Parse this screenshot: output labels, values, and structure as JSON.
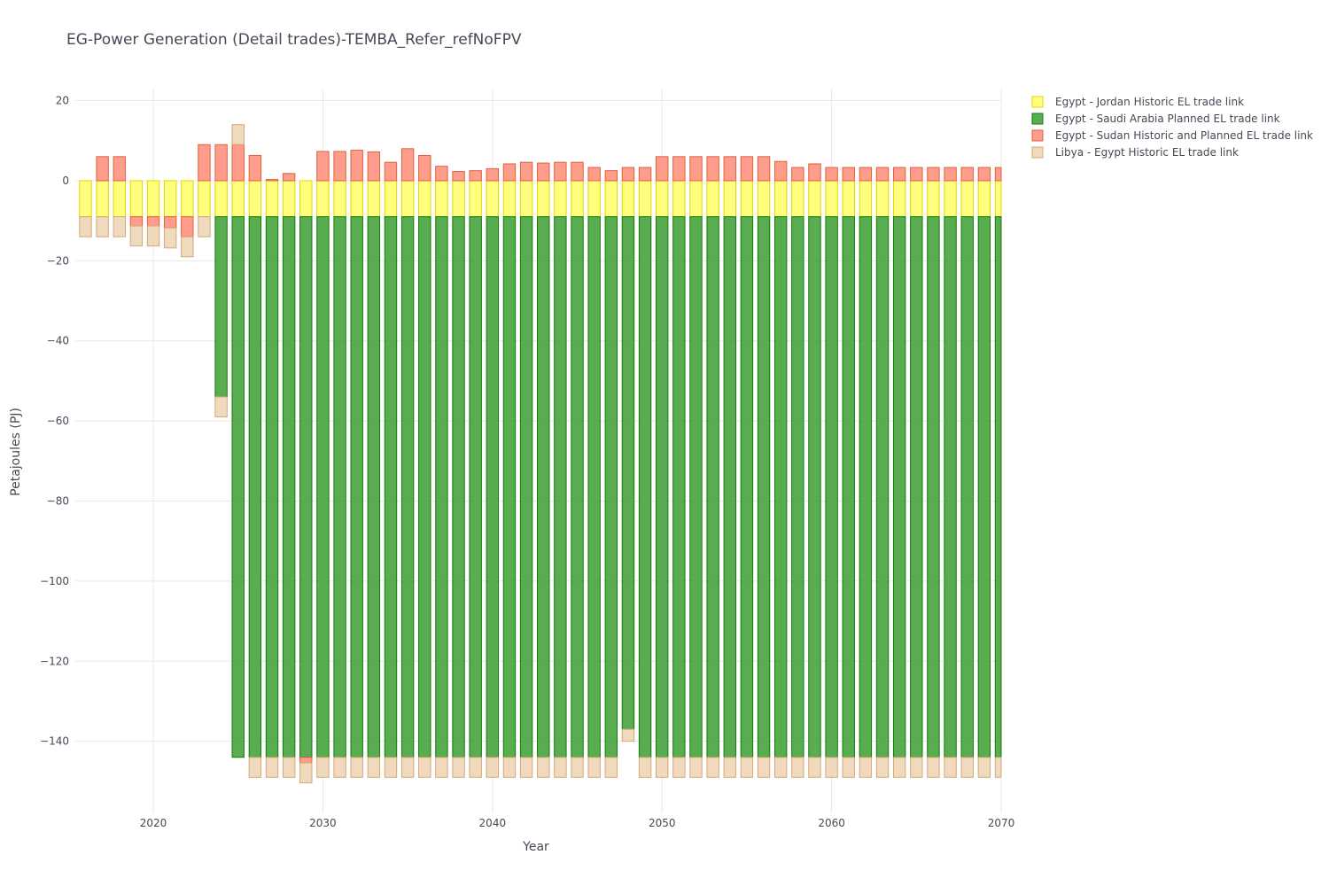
{
  "chart_data": {
    "type": "bar",
    "barmode": "relative",
    "title": "EG-Power Generation (Detail trades)-TEMBA_Refer_refNoFPV",
    "xlabel": "Year",
    "ylabel": "Petajoules (PJ)",
    "xlim": [
      2015.4,
      2070
    ],
    "ylim": [
      -158,
      23
    ],
    "xticks": [
      2020,
      2030,
      2040,
      2050,
      2060,
      2070
    ],
    "yticks": [
      20,
      0,
      -20,
      -40,
      -60,
      -80,
      -100,
      -120,
      -140
    ],
    "ytick_labels": [
      "20",
      "0",
      "−20",
      "−40",
      "−60",
      "−80",
      "−100",
      "−120",
      "−140"
    ],
    "legend_position": "top-right",
    "x": [
      2016,
      2017,
      2018,
      2019,
      2020,
      2021,
      2022,
      2023,
      2024,
      2025,
      2026,
      2027,
      2028,
      2029,
      2030,
      2031,
      2032,
      2033,
      2034,
      2035,
      2036,
      2037,
      2038,
      2039,
      2040,
      2041,
      2042,
      2043,
      2044,
      2045,
      2046,
      2047,
      2048,
      2049,
      2050,
      2051,
      2052,
      2053,
      2054,
      2055,
      2056,
      2057,
      2058,
      2059,
      2060,
      2061,
      2062,
      2063,
      2064,
      2065,
      2066,
      2067,
      2068,
      2069,
      2070
    ],
    "series": [
      {
        "name": "Egypt - Jordan Historic EL trade link",
        "fill": "#ffff66",
        "stroke": "#e3d700",
        "values": [
          -9,
          -9,
          -9,
          -9,
          -9,
          -9,
          -9,
          -9,
          -9,
          -9,
          -9,
          -9,
          -9,
          -9,
          -9,
          -9,
          -9,
          -9,
          -9,
          -9,
          -9,
          -9,
          -9,
          -9,
          -9,
          -9,
          -9,
          -9,
          -9,
          -9,
          -9,
          -9,
          -9,
          -9,
          -9,
          -9,
          -9,
          -9,
          -9,
          -9,
          -9,
          -9,
          -9,
          -9,
          -9,
          -9,
          -9,
          -9,
          -9,
          -9,
          -9,
          -9,
          -9,
          -9,
          -9
        ]
      },
      {
        "name": "Egypt - Saudi Arabia Planned EL trade link",
        "fill": "#3d9e33",
        "stroke": "#137a0d",
        "values": [
          0,
          0,
          0,
          0,
          0,
          0,
          0,
          0,
          -45,
          -135,
          -135,
          -135,
          -135,
          -135,
          -135,
          -135,
          -135,
          -135,
          -135,
          -135,
          -135,
          -135,
          -135,
          -135,
          -135,
          -135,
          -135,
          -135,
          -135,
          -135,
          -135,
          -135,
          -128,
          -135,
          -135,
          -135,
          -135,
          -135,
          -135,
          -135,
          -135,
          -135,
          -135,
          -135,
          -135,
          -135,
          -135,
          -135,
          -135,
          -135,
          -135,
          -135,
          -135,
          -135,
          -135
        ]
      },
      {
        "name": "Egypt - Sudan Historic and Planned EL trade link",
        "fill": "#ff8c78",
        "stroke": "#e0603f",
        "values": [
          0,
          6,
          6,
          -2.3,
          -2.3,
          -2.8,
          -5,
          9,
          9,
          9,
          6.3,
          0.3,
          1.8,
          -1.4,
          7.3,
          7.3,
          7.6,
          7.2,
          4.6,
          8,
          6.3,
          3.6,
          2.3,
          2.5,
          3,
          4.2,
          4.6,
          4.4,
          4.6,
          4.6,
          3.3,
          2.5,
          3.3,
          3.3,
          6,
          6,
          6,
          6,
          6,
          6,
          6,
          4.8,
          3.3,
          4.2,
          3.3,
          3.3,
          3.3,
          3.3,
          3.3,
          3.3,
          3.3,
          3.3,
          3.3,
          3.3,
          3.3
        ]
      },
      {
        "name": "Libya - Egypt Historic EL trade link",
        "fill": "#edd3b3",
        "stroke": "#d4a878",
        "values": [
          -5,
          -5,
          -5,
          -5,
          -5,
          -5,
          -5,
          -5,
          -5,
          5,
          -5,
          -5,
          -5,
          -5,
          -5,
          -5,
          -5,
          -5,
          -5,
          -5,
          -5,
          -5,
          -5,
          -5,
          -5,
          -5,
          -5,
          -5,
          -5,
          -5,
          -5,
          -5,
          -3,
          -5,
          -5,
          -5,
          -5,
          -5,
          -5,
          -5,
          -5,
          -5,
          -5,
          -5,
          -5,
          -5,
          -5,
          -5,
          -5,
          -5,
          -5,
          -5,
          -5,
          -5,
          -5
        ]
      }
    ]
  }
}
